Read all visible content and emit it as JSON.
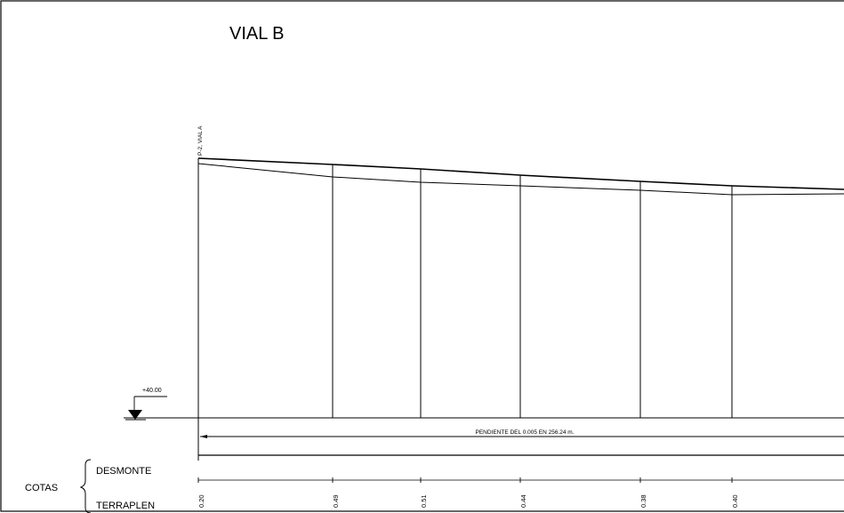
{
  "title": "VIAL B",
  "start_label": "P-2, VIAL A",
  "datum_label": "+40.00",
  "slope_label": "PENDIENTE DEL 0.005 EN 256.24 m.",
  "cotas_label": "COTAS",
  "desmonte_label": "DESMONTE",
  "terraplen_label": "TERRAPLEN",
  "stations": [
    {
      "id": "s1",
      "terraplen": "0.20"
    },
    {
      "id": "s2",
      "terraplen": "0.49"
    },
    {
      "id": "s3",
      "terraplen": "0.51"
    },
    {
      "id": "s4",
      "terraplen": "0.44"
    },
    {
      "id": "s5",
      "terraplen": "0.38"
    },
    {
      "id": "s6",
      "terraplen": "0.40"
    }
  ],
  "colors": {
    "line": "#000000",
    "background": "#ffffff"
  }
}
